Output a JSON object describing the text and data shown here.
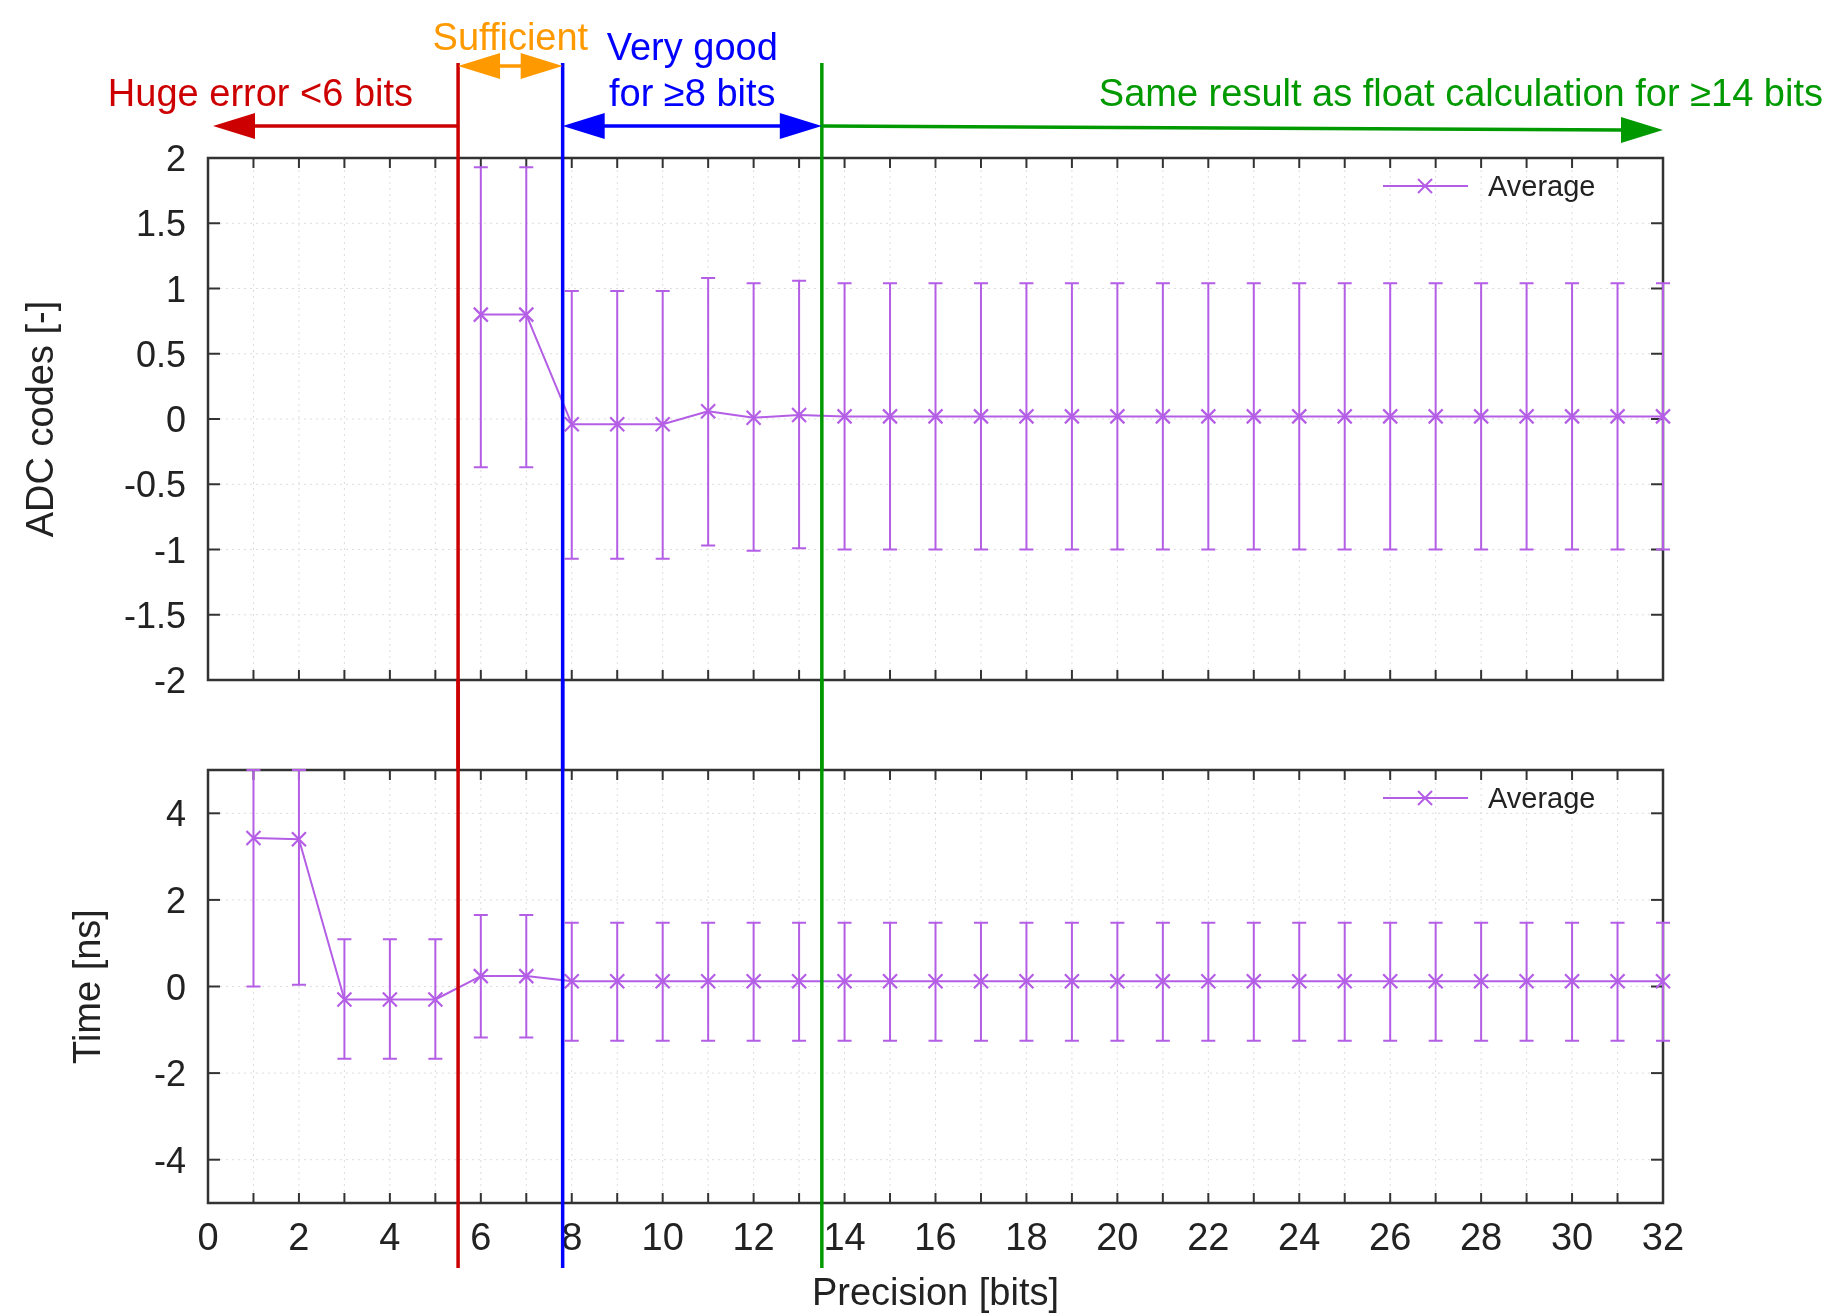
{
  "chart_data": [
    {
      "type": "line",
      "ylabel": "ADC codes [-]",
      "annotations": [
        "Huge error <6 bits",
        "Sufficient",
        "Very good\nfor ≥8 bits",
        "Same result as float calculation for ≥14 bits"
      ],
      "x": [
        6,
        7,
        8,
        9,
        10,
        11,
        12,
        13,
        14,
        15,
        16,
        17,
        18,
        19,
        20,
        21,
        22,
        23,
        24,
        25,
        26,
        27,
        28,
        29,
        30,
        31,
        32
      ],
      "series": [
        {
          "name": "Average",
          "color": "#b45ee6",
          "values": [
            0.8,
            0.8,
            -0.04,
            -0.04,
            -0.04,
            0.06,
            0.01,
            0.03,
            0.02,
            0.02,
            0.02,
            0.02,
            0.02,
            0.02,
            0.02,
            0.02,
            0.02,
            0.02,
            0.02,
            0.02,
            0.02,
            0.02,
            0.02,
            0.02,
            0.02,
            0.02,
            0.02
          ],
          "errors": [
            [
              -0.37,
              1.93
            ],
            [
              -0.37,
              1.93
            ],
            [
              -1.07,
              0.98
            ],
            [
              -1.07,
              0.98
            ],
            [
              -1.07,
              0.98
            ],
            [
              -0.97,
              1.08
            ],
            [
              -1.01,
              1.04
            ],
            [
              -0.99,
              1.06
            ],
            [
              -1.0,
              1.04
            ],
            [
              -1.0,
              1.04
            ],
            [
              -1.0,
              1.04
            ],
            [
              -1.0,
              1.04
            ],
            [
              -1.0,
              1.04
            ],
            [
              -1.0,
              1.04
            ],
            [
              -1.0,
              1.04
            ],
            [
              -1.0,
              1.04
            ],
            [
              -1.0,
              1.04
            ],
            [
              -1.0,
              1.04
            ],
            [
              -1.0,
              1.04
            ],
            [
              -1.0,
              1.04
            ],
            [
              -1.0,
              1.04
            ],
            [
              -1.0,
              1.04
            ],
            [
              -1.0,
              1.04
            ],
            [
              -1.0,
              1.04
            ],
            [
              -1.0,
              1.04
            ],
            [
              -1.0,
              1.04
            ],
            [
              -1.0,
              1.04
            ]
          ]
        }
      ],
      "xlim": [
        0,
        32
      ],
      "xticks": [
        0,
        {
          "value": 1,
          "label": null
        },
        2,
        {
          "value": 3,
          "label": null
        },
        4,
        {
          "value": 5,
          "label": null
        },
        6,
        {
          "value": 7,
          "label": null
        },
        8,
        {
          "value": 9,
          "label": null
        },
        10,
        {
          "value": 11,
          "label": null
        },
        12,
        {
          "value": 13,
          "label": null
        },
        14,
        {
          "value": 15,
          "label": null
        },
        16,
        {
          "value": 17,
          "label": null
        },
        18,
        {
          "value": 19,
          "label": null
        },
        20,
        {
          "value": 21,
          "label": null
        },
        22,
        {
          "value": 23,
          "label": null
        },
        24,
        {
          "value": 25,
          "label": null
        },
        26,
        {
          "value": 27,
          "label": null
        },
        28,
        {
          "value": 29,
          "label": null
        },
        30,
        {
          "value": 31,
          "label": null
        },
        32
      ],
      "ylim": [
        -2,
        2
      ],
      "yticks": [
        -2,
        -1.5,
        -1,
        -0.5,
        0,
        0.5,
        1,
        1.5,
        2
      ],
      "tick_labels": "y",
      "grid": true,
      "legend": "top right",
      "marker": "cross",
      "line_style": "solid",
      "ref_lines": [
        {
          "axis": "x",
          "value": 5.5,
          "label": null,
          "color": "#cc0000"
        },
        {
          "axis": "x",
          "value": 7.8,
          "label": null,
          "color": "#0000ff"
        },
        {
          "axis": "x",
          "value": 13.5,
          "label": null,
          "color": "#009900"
        }
      ]
    },
    {
      "type": "line",
      "xlabel": "Precision [bits]",
      "ylabel": "Time [ns]",
      "x": [
        1,
        2,
        3,
        4,
        5,
        6,
        7,
        8,
        9,
        10,
        11,
        12,
        13,
        14,
        15,
        16,
        17,
        18,
        19,
        20,
        21,
        22,
        23,
        24,
        25,
        26,
        27,
        28,
        29,
        30,
        31,
        32
      ],
      "series": [
        {
          "name": "Average",
          "color": "#b45ee6",
          "values": [
            3.43,
            3.4,
            -0.3,
            -0.3,
            -0.3,
            0.24,
            0.24,
            0.12,
            0.12,
            0.12,
            0.12,
            0.12,
            0.12,
            0.12,
            0.12,
            0.12,
            0.12,
            0.12,
            0.12,
            0.12,
            0.12,
            0.12,
            0.12,
            0.12,
            0.12,
            0.12,
            0.12,
            0.12,
            0.12,
            0.12,
            0.12,
            0.12
          ],
          "errors": [
            [
              0,
              5
            ],
            [
              0.04,
              5
            ],
            [
              -1.67,
              1.09
            ],
            [
              -1.67,
              1.09
            ],
            [
              -1.67,
              1.09
            ],
            [
              -1.18,
              1.65
            ],
            [
              -1.18,
              1.65
            ],
            [
              -1.25,
              1.47
            ],
            [
              -1.25,
              1.47
            ],
            [
              -1.25,
              1.47
            ],
            [
              -1.25,
              1.47
            ],
            [
              -1.25,
              1.47
            ],
            [
              -1.25,
              1.47
            ],
            [
              -1.25,
              1.47
            ],
            [
              -1.25,
              1.47
            ],
            [
              -1.25,
              1.47
            ],
            [
              -1.25,
              1.47
            ],
            [
              -1.25,
              1.47
            ],
            [
              -1.25,
              1.47
            ],
            [
              -1.25,
              1.47
            ],
            [
              -1.25,
              1.47
            ],
            [
              -1.25,
              1.47
            ],
            [
              -1.25,
              1.47
            ],
            [
              -1.25,
              1.47
            ],
            [
              -1.25,
              1.47
            ],
            [
              -1.25,
              1.47
            ],
            [
              -1.25,
              1.47
            ],
            [
              -1.25,
              1.47
            ],
            [
              -1.25,
              1.47
            ],
            [
              -1.25,
              1.47
            ],
            [
              -1.25,
              1.47
            ],
            [
              -1.25,
              1.47
            ]
          ]
        }
      ],
      "xlim": [
        0,
        32
      ],
      "xticks": [
        0,
        {
          "value": 1,
          "label": null
        },
        2,
        {
          "value": 3,
          "label": null
        },
        4,
        {
          "value": 5,
          "label": null
        },
        6,
        {
          "value": 7,
          "label": null
        },
        8,
        {
          "value": 9,
          "label": null
        },
        10,
        {
          "value": 11,
          "label": null
        },
        12,
        {
          "value": 13,
          "label": null
        },
        14,
        {
          "value": 15,
          "label": null
        },
        16,
        {
          "value": 17,
          "label": null
        },
        18,
        {
          "value": 19,
          "label": null
        },
        20,
        {
          "value": 21,
          "label": null
        },
        22,
        {
          "value": 23,
          "label": null
        },
        24,
        {
          "value": 25,
          "label": null
        },
        26,
        {
          "value": 27,
          "label": null
        },
        28,
        {
          "value": 29,
          "label": null
        },
        30,
        {
          "value": 31,
          "label": null
        },
        32
      ],
      "ylim": [
        -5,
        5
      ],
      "yticks": [
        {
          "value": -5,
          "label": null
        },
        -4,
        -2,
        0,
        2,
        4,
        {
          "value": 5,
          "label": null
        }
      ],
      "grid": true,
      "legend": "top right",
      "marker": "cross",
      "line_style": "solid",
      "ref_lines": [
        {
          "axis": "x",
          "value": 5.5,
          "label": null,
          "color": "#cc0000"
        },
        {
          "axis": "x",
          "value": 7.8,
          "label": null,
          "color": "#0000ff"
        },
        {
          "axis": "x",
          "value": 13.5,
          "label": null,
          "color": "#009900"
        }
      ]
    }
  ]
}
